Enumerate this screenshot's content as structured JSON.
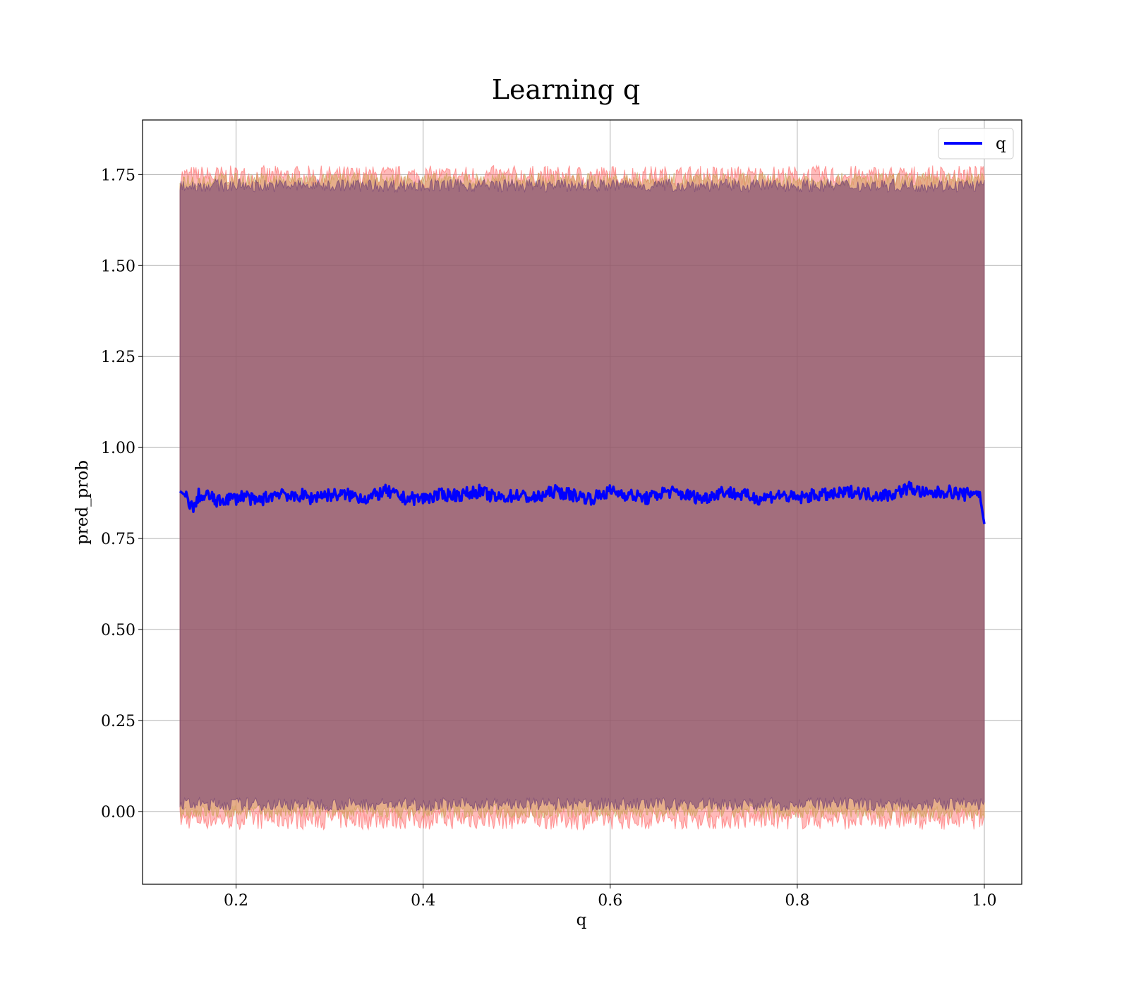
{
  "chart_data": {
    "type": "line",
    "title": "Learning q",
    "xlabel": "q",
    "ylabel": "pred_prob",
    "xlim": [
      0.1,
      1.04
    ],
    "ylim": [
      -0.2,
      1.9
    ],
    "xticks": [
      0.2,
      0.4,
      0.6,
      0.8,
      1.0
    ],
    "xtick_labels": [
      "0.2",
      "0.4",
      "0.6",
      "0.8",
      "1.0"
    ],
    "yticks": [
      0.0,
      0.25,
      0.5,
      0.75,
      1.0,
      1.25,
      1.5,
      1.75
    ],
    "ytick_labels": [
      "0.00",
      "0.25",
      "0.50",
      "0.75",
      "1.00",
      "1.25",
      "1.50",
      "1.75"
    ],
    "grid": true,
    "legend": {
      "position": "top-right",
      "entries": [
        {
          "label": "q",
          "color": "#0000ff"
        }
      ]
    },
    "series": [
      {
        "name": "q",
        "color": "#0000ff",
        "x": [
          0.14,
          0.145,
          0.15,
          0.155,
          0.16,
          0.165,
          0.17,
          0.18,
          0.19,
          0.2,
          0.21,
          0.22,
          0.23,
          0.24,
          0.25,
          0.26,
          0.27,
          0.28,
          0.29,
          0.3,
          0.32,
          0.34,
          0.36,
          0.38,
          0.4,
          0.42,
          0.44,
          0.46,
          0.48,
          0.5,
          0.52,
          0.54,
          0.56,
          0.58,
          0.6,
          0.62,
          0.64,
          0.66,
          0.68,
          0.7,
          0.72,
          0.74,
          0.76,
          0.78,
          0.8,
          0.82,
          0.84,
          0.86,
          0.88,
          0.9,
          0.92,
          0.94,
          0.96,
          0.98,
          0.99,
          0.995,
          1.0
        ],
        "y": [
          0.88,
          0.87,
          0.85,
          0.83,
          0.87,
          0.86,
          0.87,
          0.85,
          0.86,
          0.86,
          0.87,
          0.85,
          0.86,
          0.87,
          0.88,
          0.86,
          0.87,
          0.86,
          0.87,
          0.87,
          0.87,
          0.86,
          0.88,
          0.86,
          0.86,
          0.87,
          0.87,
          0.88,
          0.86,
          0.87,
          0.86,
          0.88,
          0.87,
          0.86,
          0.88,
          0.87,
          0.86,
          0.88,
          0.87,
          0.86,
          0.88,
          0.87,
          0.86,
          0.87,
          0.86,
          0.87,
          0.87,
          0.88,
          0.87,
          0.87,
          0.89,
          0.87,
          0.88,
          0.87,
          0.88,
          0.87,
          0.79
        ]
      }
    ],
    "bands": [
      {
        "role": "outer",
        "color": "#ff6666",
        "upper": 1.745,
        "lower": -0.02
      },
      {
        "role": "middle",
        "color": "#c8a050",
        "upper": 1.735,
        "lower": 0.0
      },
      {
        "role": "inner",
        "color": "#6b3a73",
        "upper": 1.72,
        "lower": 0.02
      }
    ],
    "band_x_range": [
      0.14,
      1.0
    ]
  }
}
